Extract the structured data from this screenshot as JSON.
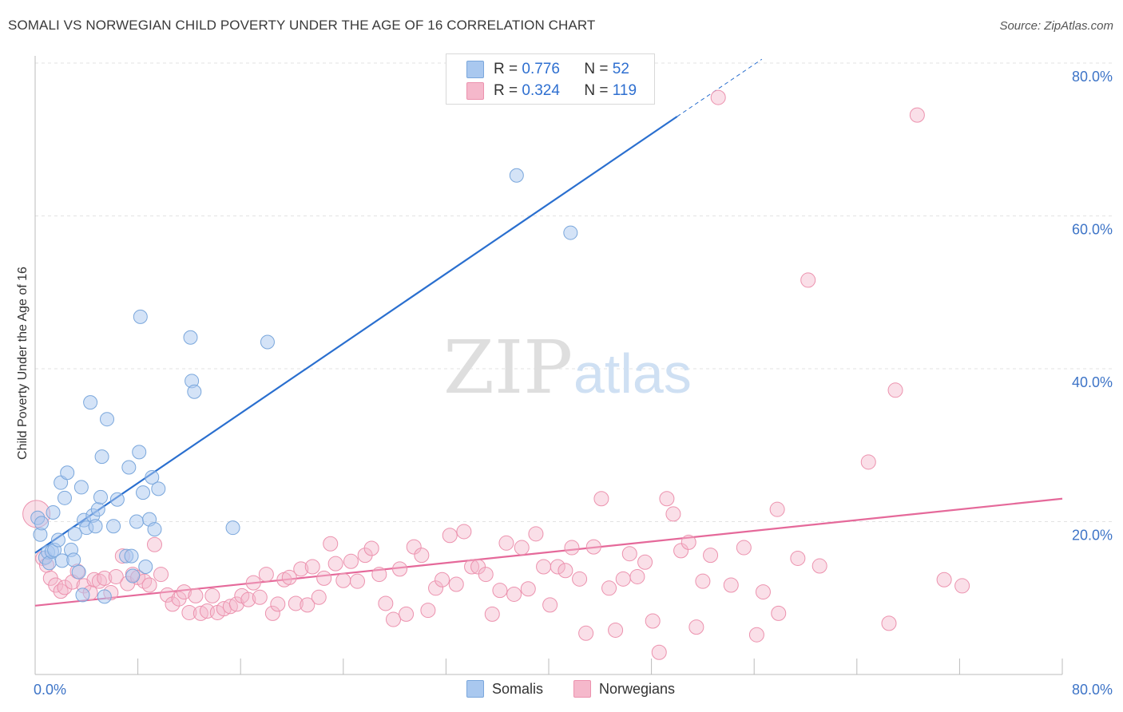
{
  "title": "SOMALI VS NORWEGIAN CHILD POVERTY UNDER THE AGE OF 16 CORRELATION CHART",
  "source": "Source: ZipAtlas.com",
  "watermark": {
    "zip": "ZIP",
    "atlas": "atlas"
  },
  "colors": {
    "somali_fill": "#a9c8ef",
    "somali_stroke": "#7aa7dc",
    "somali_line": "#2a6fcf",
    "norwegian_fill": "#f5b8cb",
    "norwegian_stroke": "#ec92ae",
    "norwegian_line": "#e5699a",
    "axis_label": "#3d74c7",
    "grid": "#e3e3e3"
  },
  "legend": {
    "somali": {
      "r_label": "R = ",
      "r": "0.776",
      "n_label": "N = ",
      "n": "52",
      "name": "Somalis"
    },
    "norwegian": {
      "r_label": "R = ",
      "r": "0.324",
      "n_label": "N = ",
      "n": "119",
      "name": "Norwegians"
    }
  },
  "chart_data": {
    "type": "scatter",
    "title": "SOMALI VS NORWEGIAN CHILD POVERTY UNDER THE AGE OF 16 CORRELATION CHART",
    "xlabel": "",
    "ylabel": "Child Poverty Under the Age of 16",
    "x_tick_labels": [
      "0.0%",
      "80.0%"
    ],
    "y_tick_labels": [
      "20.0%",
      "40.0%",
      "60.0%",
      "80.0%"
    ],
    "xlim": [
      0,
      80
    ],
    "ylim": [
      0,
      83
    ],
    "grid": true,
    "legend_position": "top-center",
    "series": [
      {
        "name": "Somalis",
        "trend": {
          "x": [
            0,
            50
          ],
          "y": [
            15.9,
            73.0
          ],
          "dashed_to": [
            56.6,
            80.5
          ]
        },
        "points": [
          [
            0.2,
            20.5
          ],
          [
            0.4,
            18.3
          ],
          [
            0.5,
            19.8
          ],
          [
            0.8,
            15.3
          ],
          [
            1.0,
            16.0
          ],
          [
            1.1,
            14.6
          ],
          [
            1.3,
            16.1
          ],
          [
            1.4,
            21.2
          ],
          [
            1.5,
            16.3
          ],
          [
            1.8,
            17.6
          ],
          [
            2.0,
            25.1
          ],
          [
            2.1,
            14.9
          ],
          [
            2.3,
            23.1
          ],
          [
            2.5,
            26.4
          ],
          [
            2.8,
            16.3
          ],
          [
            3.0,
            15.0
          ],
          [
            3.1,
            18.4
          ],
          [
            3.4,
            13.4
          ],
          [
            3.6,
            24.5
          ],
          [
            3.7,
            10.4
          ],
          [
            3.8,
            20.2
          ],
          [
            4.0,
            19.2
          ],
          [
            4.3,
            35.6
          ],
          [
            4.5,
            20.8
          ],
          [
            4.7,
            19.4
          ],
          [
            4.9,
            21.6
          ],
          [
            5.1,
            23.2
          ],
          [
            5.2,
            28.5
          ],
          [
            5.4,
            10.2
          ],
          [
            5.6,
            33.4
          ],
          [
            6.1,
            19.4
          ],
          [
            6.4,
            22.9
          ],
          [
            7.1,
            15.5
          ],
          [
            7.3,
            27.1
          ],
          [
            7.5,
            15.5
          ],
          [
            7.6,
            12.9
          ],
          [
            7.9,
            20.0
          ],
          [
            8.1,
            29.1
          ],
          [
            8.2,
            46.8
          ],
          [
            8.4,
            23.8
          ],
          [
            8.6,
            14.1
          ],
          [
            8.9,
            20.3
          ],
          [
            9.1,
            25.8
          ],
          [
            9.3,
            19.0
          ],
          [
            9.6,
            24.3
          ],
          [
            12.1,
            44.1
          ],
          [
            12.2,
            38.4
          ],
          [
            12.4,
            37.0
          ],
          [
            15.4,
            19.2
          ],
          [
            18.1,
            43.5
          ],
          [
            37.5,
            65.3
          ],
          [
            41.7,
            57.8
          ]
        ]
      },
      {
        "name": "Norwegians",
        "trend": {
          "x": [
            0,
            80
          ],
          "y": [
            9.0,
            23.0
          ]
        },
        "points": [
          [
            0.1,
            21.0
          ],
          [
            0.6,
            15.2
          ],
          [
            0.9,
            14.3
          ],
          [
            1.2,
            12.6
          ],
          [
            1.6,
            11.7
          ],
          [
            2.0,
            10.9
          ],
          [
            2.3,
            11.4
          ],
          [
            2.9,
            12.1
          ],
          [
            3.3,
            13.5
          ],
          [
            3.8,
            11.6
          ],
          [
            4.3,
            10.7
          ],
          [
            4.6,
            12.4
          ],
          [
            5.0,
            12.2
          ],
          [
            5.4,
            12.6
          ],
          [
            5.9,
            10.7
          ],
          [
            6.3,
            12.8
          ],
          [
            6.8,
            15.5
          ],
          [
            7.2,
            11.9
          ],
          [
            7.6,
            13.1
          ],
          [
            8.0,
            12.7
          ],
          [
            8.5,
            12.2
          ],
          [
            8.9,
            11.7
          ],
          [
            9.3,
            17.0
          ],
          [
            9.8,
            13.1
          ],
          [
            10.3,
            10.4
          ],
          [
            10.7,
            9.2
          ],
          [
            11.2,
            9.9
          ],
          [
            11.6,
            10.8
          ],
          [
            12.0,
            8.1
          ],
          [
            12.5,
            10.3
          ],
          [
            12.9,
            8.0
          ],
          [
            13.4,
            8.3
          ],
          [
            13.8,
            10.3
          ],
          [
            14.2,
            8.1
          ],
          [
            14.7,
            8.6
          ],
          [
            15.2,
            8.9
          ],
          [
            15.7,
            9.2
          ],
          [
            16.1,
            10.3
          ],
          [
            16.6,
            9.8
          ],
          [
            17.0,
            12.0
          ],
          [
            17.5,
            10.1
          ],
          [
            18.0,
            13.1
          ],
          [
            18.5,
            8.0
          ],
          [
            18.9,
            9.2
          ],
          [
            19.4,
            12.4
          ],
          [
            19.8,
            12.7
          ],
          [
            20.3,
            9.3
          ],
          [
            20.7,
            13.8
          ],
          [
            21.2,
            9.1
          ],
          [
            21.6,
            14.1
          ],
          [
            22.1,
            10.1
          ],
          [
            22.5,
            12.6
          ],
          [
            23.0,
            17.1
          ],
          [
            23.4,
            14.5
          ],
          [
            24.0,
            12.3
          ],
          [
            24.6,
            14.8
          ],
          [
            25.1,
            12.2
          ],
          [
            25.7,
            15.6
          ],
          [
            26.2,
            16.5
          ],
          [
            26.8,
            13.1
          ],
          [
            27.3,
            9.3
          ],
          [
            27.9,
            7.2
          ],
          [
            28.4,
            13.8
          ],
          [
            28.9,
            7.9
          ],
          [
            29.5,
            16.7
          ],
          [
            30.1,
            15.6
          ],
          [
            30.6,
            8.4
          ],
          [
            31.2,
            11.3
          ],
          [
            31.7,
            12.4
          ],
          [
            32.3,
            18.2
          ],
          [
            32.8,
            11.8
          ],
          [
            33.4,
            18.7
          ],
          [
            34.0,
            14.1
          ],
          [
            34.5,
            14.1
          ],
          [
            35.1,
            13.1
          ],
          [
            35.6,
            7.9
          ],
          [
            36.2,
            11.0
          ],
          [
            36.7,
            17.2
          ],
          [
            37.3,
            10.5
          ],
          [
            37.9,
            16.6
          ],
          [
            38.4,
            11.2
          ],
          [
            39.0,
            18.4
          ],
          [
            39.6,
            14.1
          ],
          [
            40.1,
            9.1
          ],
          [
            40.7,
            14.1
          ],
          [
            41.3,
            13.6
          ],
          [
            41.8,
            16.6
          ],
          [
            42.4,
            12.5
          ],
          [
            42.9,
            5.4
          ],
          [
            43.5,
            16.7
          ],
          [
            44.1,
            23.0
          ],
          [
            44.7,
            11.3
          ],
          [
            45.2,
            5.8
          ],
          [
            45.8,
            12.5
          ],
          [
            46.3,
            15.8
          ],
          [
            46.9,
            12.8
          ],
          [
            47.5,
            14.7
          ],
          [
            48.1,
            7.0
          ],
          [
            48.6,
            2.9
          ],
          [
            49.2,
            23.0
          ],
          [
            49.7,
            21.0
          ],
          [
            50.3,
            16.2
          ],
          [
            50.9,
            17.3
          ],
          [
            51.5,
            6.2
          ],
          [
            52.0,
            12.2
          ],
          [
            52.6,
            15.6
          ],
          [
            53.2,
            75.5
          ],
          [
            54.2,
            11.7
          ],
          [
            55.2,
            16.6
          ],
          [
            56.2,
            5.2
          ],
          [
            56.7,
            10.8
          ],
          [
            57.8,
            21.6
          ],
          [
            57.9,
            8.0
          ],
          [
            59.4,
            15.2
          ],
          [
            60.2,
            51.6
          ],
          [
            61.1,
            14.2
          ],
          [
            64.9,
            27.8
          ],
          [
            66.5,
            6.7
          ],
          [
            67.0,
            37.2
          ],
          [
            68.7,
            73.2
          ],
          [
            70.8,
            12.4
          ],
          [
            72.2,
            11.6
          ]
        ]
      }
    ]
  }
}
